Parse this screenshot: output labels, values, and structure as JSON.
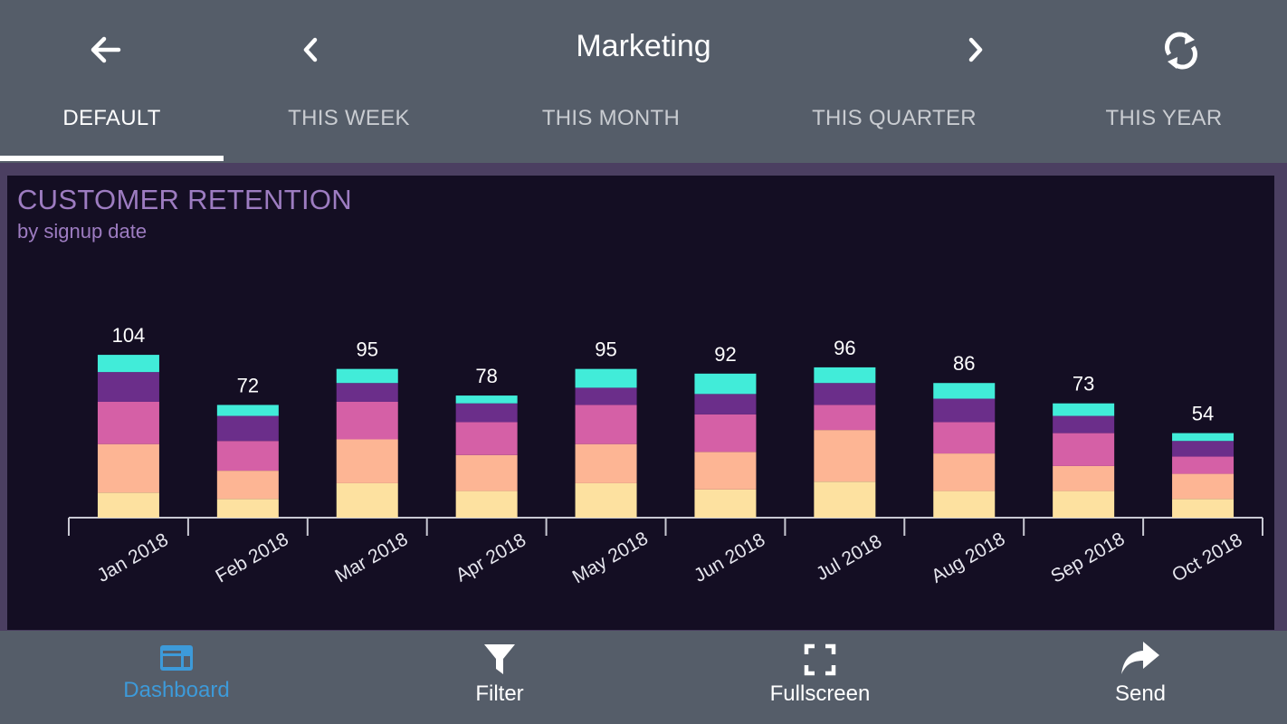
{
  "header": {
    "title": "Marketing",
    "back_icon": "arrow-left-icon",
    "prev_icon": "chevron-left-icon",
    "next_icon": "chevron-right-icon",
    "refresh_icon": "refresh-icon"
  },
  "tabs": [
    {
      "label": "DEFAULT",
      "active": true
    },
    {
      "label": "THIS WEEK",
      "active": false
    },
    {
      "label": "THIS MONTH",
      "active": false
    },
    {
      "label": "THIS QUARTER",
      "active": false
    },
    {
      "label": "THIS YEAR",
      "active": false
    }
  ],
  "panel": {
    "title": "CUSTOMER RETENTION",
    "subtitle": "by signup date"
  },
  "colors": {
    "header_bg": "#555d69",
    "panel_bg": "#140e23",
    "panel_border": "#4b3f61",
    "title": "#9d7cc1",
    "active_nav": "#3d9ad9"
  },
  "chart_data": {
    "type": "bar",
    "stacked": true,
    "categories": [
      "Jan 2018",
      "Feb 2018",
      "Mar 2018",
      "Apr 2018",
      "May 2018",
      "Jun 2018",
      "Jul 2018",
      "Aug 2018",
      "Sep 2018",
      "Oct 2018"
    ],
    "totals": [
      104,
      72,
      95,
      78,
      95,
      92,
      96,
      86,
      73,
      54
    ],
    "series": [
      {
        "color": "#fde1a0",
        "values": [
          16,
          12,
          22,
          17,
          22,
          18,
          23,
          17,
          17,
          12
        ]
      },
      {
        "color": "#fdb594",
        "values": [
          31,
          18,
          28,
          23,
          25,
          24,
          33,
          24,
          16,
          16
        ]
      },
      {
        "color": "#d560a6",
        "values": [
          27,
          19,
          24,
          21,
          25,
          24,
          16,
          20,
          21,
          11
        ]
      },
      {
        "color": "#6b2e8a",
        "values": [
          19,
          16,
          12,
          12,
          11,
          13,
          14,
          15,
          11,
          10
        ]
      },
      {
        "color": "#41ecd9",
        "values": [
          11,
          7,
          9,
          5,
          12,
          13,
          10,
          10,
          8,
          5
        ]
      }
    ],
    "grid": false,
    "legend": "none"
  },
  "bottom_nav": [
    {
      "label": "Dashboard",
      "icon": "dashboard-icon",
      "active": true
    },
    {
      "label": "Filter",
      "icon": "filter-icon",
      "active": false
    },
    {
      "label": "Fullscreen",
      "icon": "fullscreen-icon",
      "active": false
    },
    {
      "label": "Send",
      "icon": "share-arrow-icon",
      "active": false
    }
  ]
}
